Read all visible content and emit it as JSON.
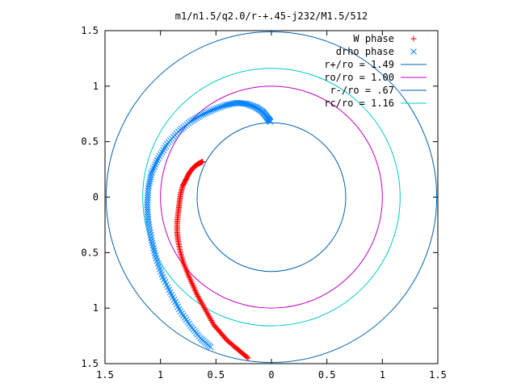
{
  "chart_data": {
    "type": "scatter",
    "title": "m1/n1.5/q2.0/r-+.45-j232/M1.5/512",
    "xlim": [
      -1.5,
      1.5
    ],
    "ylim": [
      -1.5,
      1.5
    ],
    "x_ticks": [
      "1.5",
      "1",
      "0.5",
      "0",
      "0.5",
      "1",
      "1.5"
    ],
    "y_ticks": [
      "1.5",
      "1",
      "0.5",
      "0",
      "0.5",
      "1",
      "1.5"
    ],
    "grid": false,
    "legend_position": "top-right",
    "series": [
      {
        "name": "W phase",
        "kind": "points",
        "marker": "+",
        "color": "#ff0000",
        "points": [
          [
            -0.62,
            0.32
          ],
          [
            -0.66,
            0.3
          ],
          [
            -0.7,
            0.27
          ],
          [
            -0.74,
            0.22
          ],
          [
            -0.77,
            0.16
          ],
          [
            -0.8,
            0.1
          ],
          [
            -0.82,
            0.02
          ],
          [
            -0.83,
            -0.06
          ],
          [
            -0.84,
            -0.14
          ],
          [
            -0.85,
            -0.23
          ],
          [
            -0.85,
            -0.32
          ],
          [
            -0.84,
            -0.4
          ],
          [
            -0.82,
            -0.5
          ],
          [
            -0.79,
            -0.6
          ],
          [
            -0.75,
            -0.7
          ],
          [
            -0.71,
            -0.79
          ],
          [
            -0.67,
            -0.88
          ],
          [
            -0.62,
            -0.97
          ],
          [
            -0.57,
            -1.06
          ],
          [
            -0.52,
            -1.15
          ],
          [
            -0.46,
            -1.22
          ],
          [
            -0.4,
            -1.29
          ],
          [
            -0.33,
            -1.35
          ],
          [
            -0.27,
            -1.4
          ],
          [
            -0.21,
            -1.45
          ]
        ]
      },
      {
        "name": "drho phase",
        "kind": "points",
        "marker": "x",
        "color": "#0080ff",
        "points": [
          [
            -0.01,
            0.68
          ],
          [
            -0.04,
            0.72
          ],
          [
            -0.08,
            0.77
          ],
          [
            -0.14,
            0.81
          ],
          [
            -0.22,
            0.84
          ],
          [
            -0.31,
            0.85
          ],
          [
            -0.41,
            0.83
          ],
          [
            -0.52,
            0.79
          ],
          [
            -0.63,
            0.74
          ],
          [
            -0.73,
            0.68
          ],
          [
            -0.84,
            0.59
          ],
          [
            -0.94,
            0.48
          ],
          [
            -1.02,
            0.35
          ],
          [
            -1.08,
            0.22
          ],
          [
            -1.11,
            0.08
          ],
          [
            -1.12,
            -0.07
          ],
          [
            -1.11,
            -0.22
          ],
          [
            -1.08,
            -0.39
          ],
          [
            -1.04,
            -0.55
          ],
          [
            -0.98,
            -0.72
          ],
          [
            -0.9,
            -0.88
          ],
          [
            -0.82,
            -1.03
          ],
          [
            -0.73,
            -1.16
          ],
          [
            -0.64,
            -1.27
          ],
          [
            -0.55,
            -1.35
          ]
        ]
      },
      {
        "name": "r+/ro = 1.49",
        "kind": "circle",
        "radius": 1.49,
        "color": "#0060ad"
      },
      {
        "name": "ro/ro = 1.00",
        "kind": "circle",
        "radius": 1.0,
        "color": "#c000c0"
      },
      {
        "name": "r-/ro = .67",
        "kind": "circle",
        "radius": 0.67,
        "color": "#0060ad"
      },
      {
        "name": "rc/ro = 1.16",
        "kind": "circle",
        "radius": 1.16,
        "color": "#00c8c8"
      }
    ]
  }
}
